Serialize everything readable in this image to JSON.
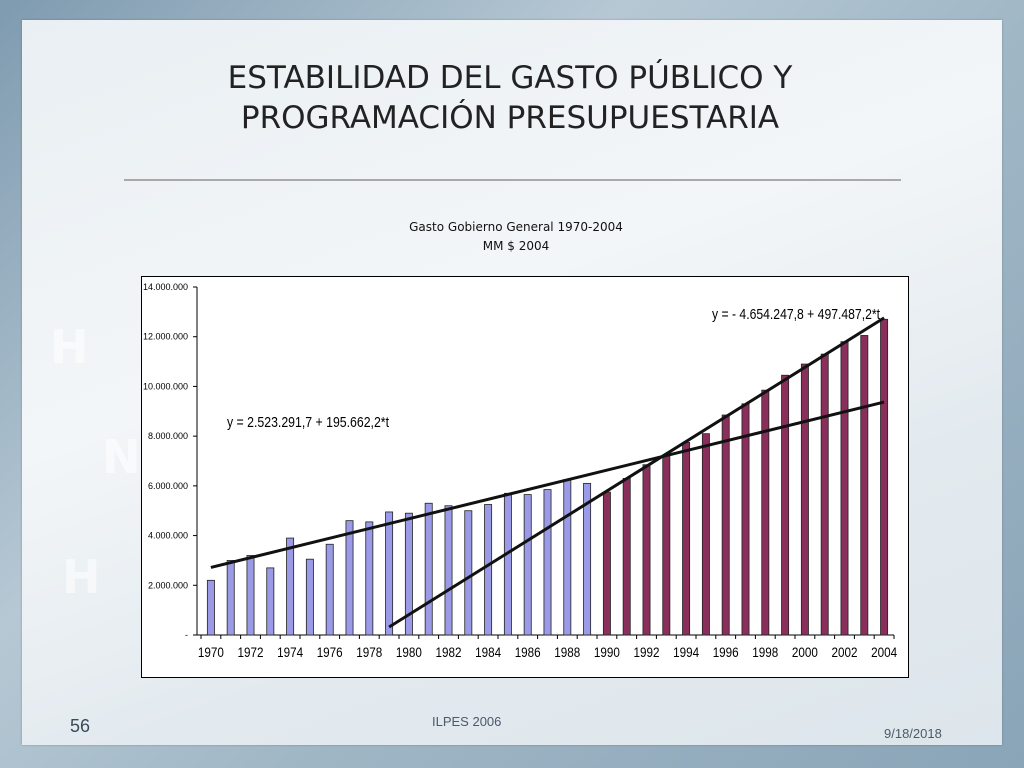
{
  "slide": {
    "title_line1": "ESTABILIDAD DEL GASTO PÚBLICO Y",
    "title_line2": "PROGRAMACIÓN PRESUPUESTARIA",
    "footer_center": "ILPES 2006",
    "slide_number": "56",
    "date": "9/18/2018"
  },
  "colors": {
    "series_1970_1989": "#9a9ae6",
    "series_1990_2004": "#8a2f5c",
    "trend": "#111111"
  },
  "chart_data": {
    "type": "bar",
    "title": "Gasto Gobierno General 1970-2004",
    "subtitle": "MM $ 2004",
    "xlabel": "",
    "ylabel": "",
    "ylim": [
      0,
      14000000
    ],
    "y_ticks": [
      0,
      2000000,
      4000000,
      6000000,
      8000000,
      10000000,
      12000000,
      14000000
    ],
    "y_tick_labels": [
      "-",
      "2.000.000",
      "4.000.000",
      "6.000.000",
      "8.000.000",
      "10.000.000",
      "12.000.000",
      "14.000.000"
    ],
    "x_tick_labels": [
      "1970",
      "1972",
      "1974",
      "1976",
      "1978",
      "1980",
      "1982",
      "1984",
      "1986",
      "1988",
      "1990",
      "1992",
      "1994",
      "1996",
      "1998",
      "2000",
      "2002",
      "2004"
    ],
    "grid": false,
    "legend": "none",
    "categories": [
      1970,
      1971,
      1972,
      1973,
      1974,
      1975,
      1976,
      1977,
      1978,
      1979,
      1980,
      1981,
      1982,
      1983,
      1984,
      1985,
      1986,
      1987,
      1988,
      1989,
      1990,
      1991,
      1992,
      1993,
      1994,
      1995,
      1996,
      1997,
      1998,
      1999,
      2000,
      2001,
      2002,
      2003,
      2004
    ],
    "series": [
      {
        "x": [
          1970,
          1971,
          1972,
          1973,
          1974,
          1975,
          1976,
          1977,
          1978,
          1979,
          1980,
          1981,
          1982,
          1983,
          1984,
          1985,
          1986,
          1987,
          1988,
          1989
        ],
        "values": [
          2200000,
          3000000,
          3200000,
          2700000,
          3900000,
          3050000,
          3650000,
          4600000,
          4550000,
          4950000,
          4900000,
          5300000,
          5200000,
          5000000,
          5250000,
          5700000,
          5650000,
          5850000,
          6250000,
          6100000
        ]
      },
      {
        "x": [
          1990,
          1991,
          1992,
          1993,
          1994,
          1995,
          1996,
          1997,
          1998,
          1999,
          2000,
          2001,
          2002,
          2003,
          2004
        ],
        "values": [
          5750000,
          6300000,
          6850000,
          7250000,
          7750000,
          8100000,
          8850000,
          9300000,
          9850000,
          10450000,
          10900000,
          11300000,
          11800000,
          12050000,
          12700000
        ]
      }
    ],
    "trendlines": [
      {
        "label": "y =  2.523.291,7 + 195.662,2*t",
        "intercept": 2523291.7,
        "slope": 195662.2,
        "x_range": [
          1970,
          2004
        ]
      },
      {
        "label": "y = - 4.654.247,8 + 497.487,2*t",
        "intercept": -4654247.8,
        "slope": 497487.2,
        "x_range": [
          1979,
          2004
        ]
      }
    ]
  }
}
